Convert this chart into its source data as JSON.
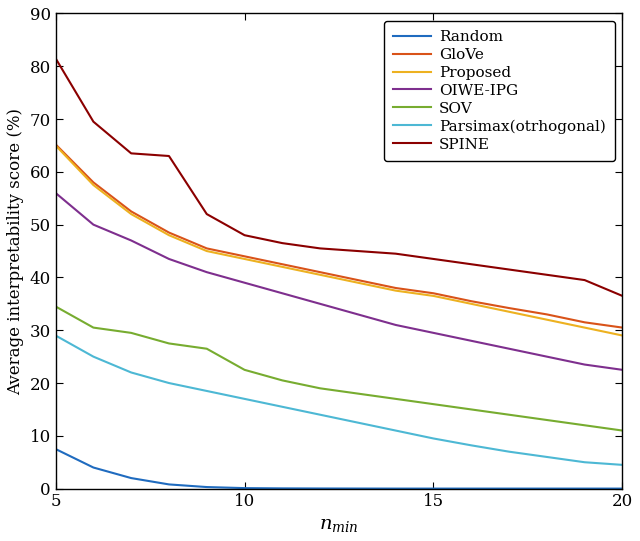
{
  "x": [
    5,
    6,
    7,
    8,
    9,
    10,
    11,
    12,
    13,
    14,
    15,
    16,
    17,
    18,
    19,
    20
  ],
  "series": {
    "Random": {
      "color": "#1f6bbf",
      "values": [
        7.5,
        4.0,
        2.0,
        0.8,
        0.3,
        0.1,
        0.05,
        0.03,
        0.02,
        0.01,
        0.01,
        0.01,
        0.01,
        0.01,
        0.01,
        0.01
      ]
    },
    "GloVe": {
      "color": "#d95319",
      "values": [
        65.2,
        58.0,
        52.5,
        48.5,
        45.5,
        44.0,
        42.5,
        41.0,
        39.5,
        38.0,
        37.0,
        35.5,
        34.2,
        33.0,
        31.5,
        30.5
      ]
    },
    "Proposed": {
      "color": "#edb120",
      "values": [
        65.0,
        57.5,
        52.0,
        48.0,
        45.0,
        43.5,
        42.0,
        40.5,
        39.0,
        37.5,
        36.5,
        35.0,
        33.5,
        32.0,
        30.5,
        29.0
      ]
    },
    "OIWE-IPG": {
      "color": "#7e2f8e",
      "values": [
        56.0,
        50.0,
        47.0,
        43.5,
        41.0,
        39.0,
        37.0,
        35.0,
        33.0,
        31.0,
        29.5,
        28.0,
        26.5,
        25.0,
        23.5,
        22.5
      ]
    },
    "SOV": {
      "color": "#77ac30",
      "values": [
        34.5,
        30.5,
        29.5,
        27.5,
        26.5,
        22.5,
        20.5,
        19.0,
        18.0,
        17.0,
        16.0,
        15.0,
        14.0,
        13.0,
        12.0,
        11.0
      ]
    },
    "Parsimax(otrhogonal)": {
      "color": "#4db8d4",
      "values": [
        29.0,
        25.0,
        22.0,
        20.0,
        18.5,
        17.0,
        15.5,
        14.0,
        12.5,
        11.0,
        9.5,
        8.2,
        7.0,
        6.0,
        5.0,
        4.5
      ]
    },
    "SPINE": {
      "color": "#8b0000",
      "values": [
        81.5,
        69.5,
        63.5,
        63.0,
        52.0,
        48.0,
        46.5,
        45.5,
        45.0,
        44.5,
        43.5,
        42.5,
        41.5,
        40.5,
        39.5,
        36.5
      ]
    }
  },
  "xlabel": "$n_{min}$",
  "ylabel": "Average interpretability score (%)",
  "xlim": [
    5,
    20
  ],
  "ylim": [
    0,
    90
  ],
  "yticks": [
    0,
    10,
    20,
    30,
    40,
    50,
    60,
    70,
    80,
    90
  ],
  "xticks": [
    5,
    10,
    15,
    20
  ],
  "legend_order": [
    "Random",
    "GloVe",
    "Proposed",
    "OIWE-IPG",
    "SOV",
    "Parsimax(otrhogonal)",
    "SPINE"
  ],
  "legend_loc": "upper right",
  "linewidth": 1.5
}
